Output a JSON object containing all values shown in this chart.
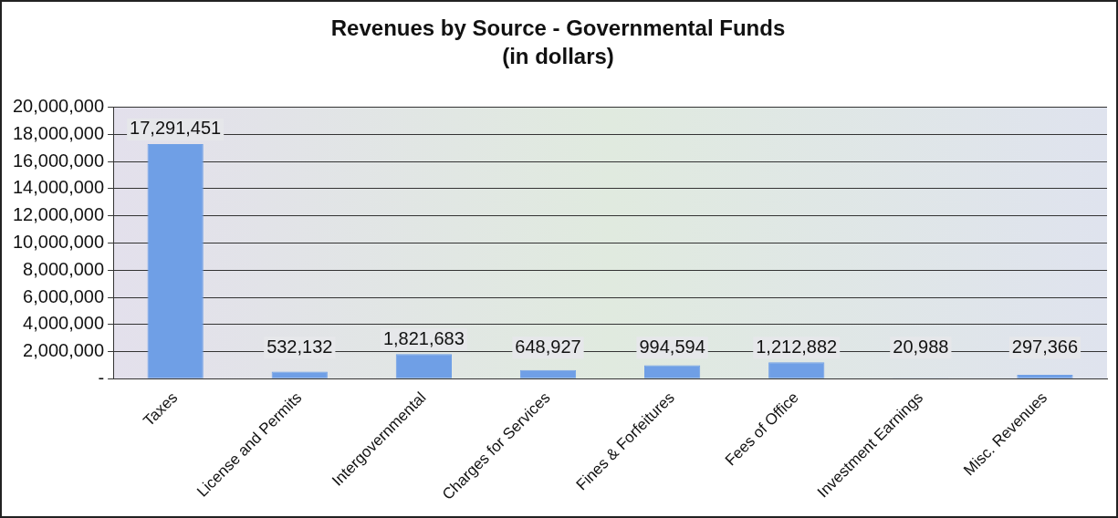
{
  "chart_data": {
    "type": "bar",
    "title": "Revenues by Source - Governmental Funds",
    "subtitle": "(in dollars)",
    "categories": [
      "Taxes",
      "License and Permits",
      "Intergovernmental",
      "Charges for Services",
      "Fines & Forfeitures",
      "Fees of Office",
      "Investment Earnings",
      "Misc. Revenues"
    ],
    "values": [
      17291451,
      532132,
      1821683,
      648927,
      994594,
      1212882,
      20988,
      297366
    ],
    "color": "#6f9fe6",
    "value_labels": [
      "17,291,451",
      "532,132",
      "1,821,683",
      "648,927",
      "994,594",
      "1,212,882",
      "20,988",
      "297,366"
    ],
    "ylim": [
      0,
      20000000
    ],
    "yticks": [
      {
        "value": 0,
        "label": "-"
      },
      {
        "value": 2000000,
        "label": "2,000,000"
      },
      {
        "value": 4000000,
        "label": "4,000,000"
      },
      {
        "value": 6000000,
        "label": "6,000,000"
      },
      {
        "value": 8000000,
        "label": "8,000,000"
      },
      {
        "value": 10000000,
        "label": "10,000,000"
      },
      {
        "value": 12000000,
        "label": "12,000,000"
      },
      {
        "value": 14000000,
        "label": "14,000,000"
      },
      {
        "value": 16000000,
        "label": "16,000,000"
      },
      {
        "value": 18000000,
        "label": "18,000,000"
      },
      {
        "value": 20000000,
        "label": "20,000,000"
      }
    ],
    "grid": "y",
    "legend": false
  }
}
